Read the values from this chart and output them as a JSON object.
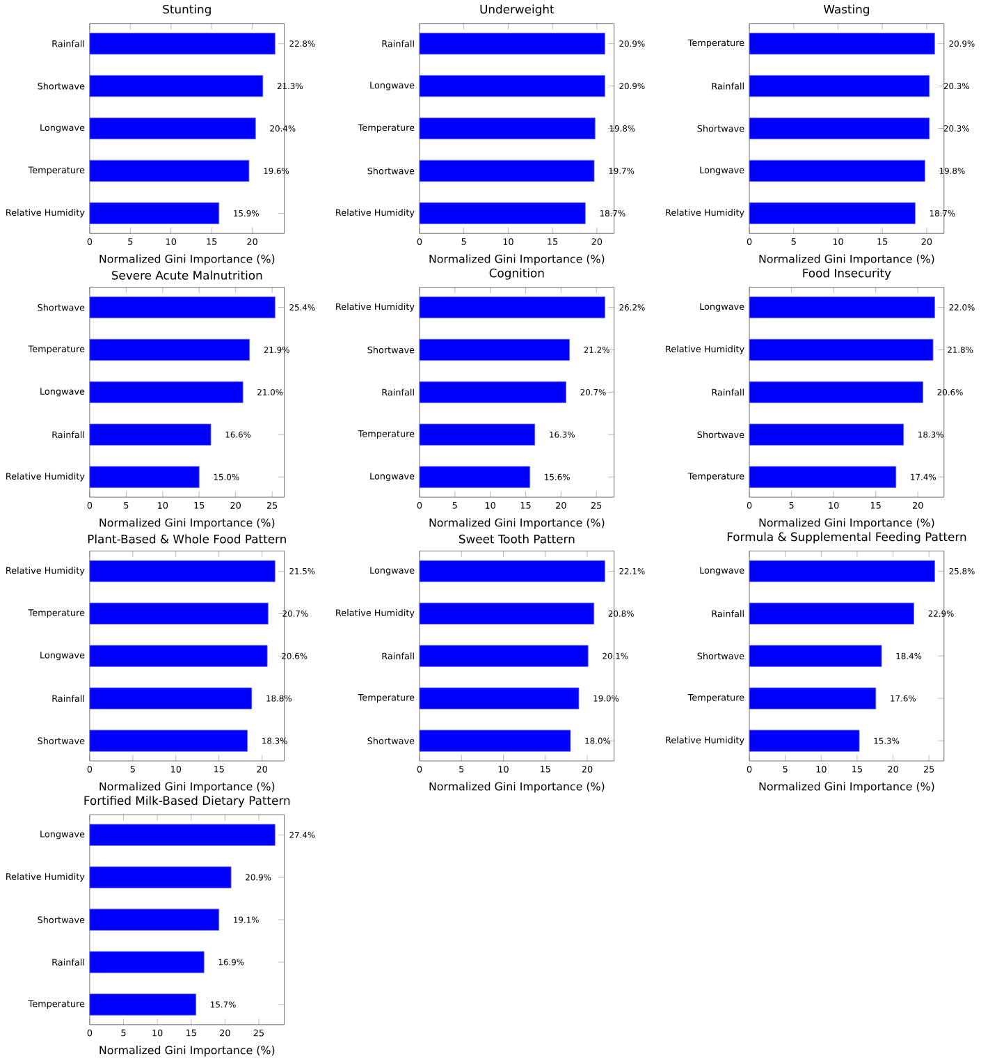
{
  "chart_data": [
    {
      "type": "bar",
      "orientation": "horizontal",
      "title": "Stunting",
      "xlabel": "Normalized Gini Importance (%)",
      "categories": [
        "Rainfall",
        "Shortwave",
        "Longwave",
        "Temperature",
        "Relative Humidity"
      ],
      "values": [
        22.8,
        21.3,
        20.4,
        19.6,
        15.9
      ],
      "value_labels": [
        "22.8%",
        "21.3%",
        "20.4%",
        "19.6%",
        "15.9%"
      ],
      "color": "#0000ff",
      "xlim": [
        0,
        23.94
      ],
      "xticks": [
        0,
        5,
        10,
        15,
        20
      ]
    },
    {
      "type": "bar",
      "orientation": "horizontal",
      "title": "Underweight",
      "xlabel": "Normalized Gini Importance (%)",
      "categories": [
        "Rainfall",
        "Longwave",
        "Temperature",
        "Shortwave",
        "Relative Humidity"
      ],
      "values": [
        20.9,
        20.9,
        19.8,
        19.7,
        18.7
      ],
      "value_labels": [
        "20.9%",
        "20.9%",
        "19.8%",
        "19.7%",
        "18.7%"
      ],
      "color": "#0000ff",
      "xlim": [
        0,
        21.95
      ],
      "xticks": [
        0,
        5,
        10,
        15,
        20
      ]
    },
    {
      "type": "bar",
      "orientation": "horizontal",
      "title": "Wasting",
      "xlabel": "Normalized Gini Importance (%)",
      "categories": [
        "Temperature",
        "Rainfall",
        "Shortwave",
        "Longwave",
        "Relative Humidity"
      ],
      "values": [
        20.9,
        20.3,
        20.3,
        19.8,
        18.7
      ],
      "value_labels": [
        "20.9%",
        "20.3%",
        "20.3%",
        "19.8%",
        "18.7%"
      ],
      "color": "#0000ff",
      "xlim": [
        0,
        21.95
      ],
      "xticks": [
        0,
        5,
        10,
        15,
        20
      ]
    },
    {
      "type": "bar",
      "orientation": "horizontal",
      "title": "Severe Acute Malnutrition",
      "xlabel": "Normalized Gini Importance (%)",
      "categories": [
        "Shortwave",
        "Temperature",
        "Longwave",
        "Rainfall",
        "Relative Humidity"
      ],
      "values": [
        25.4,
        21.9,
        21.0,
        16.6,
        15.0
      ],
      "value_labels": [
        "25.4%",
        "21.9%",
        "21.0%",
        "16.6%",
        "15.0%"
      ],
      "color": "#0000ff",
      "xlim": [
        0,
        26.67
      ],
      "xticks": [
        0,
        5,
        10,
        15,
        20,
        25
      ]
    },
    {
      "type": "bar",
      "orientation": "horizontal",
      "title": "Cognition",
      "xlabel": "Normalized Gini Importance (%)",
      "categories": [
        "Relative Humidity",
        "Shortwave",
        "Rainfall",
        "Temperature",
        "Longwave"
      ],
      "values": [
        26.2,
        21.2,
        20.7,
        16.3,
        15.6
      ],
      "value_labels": [
        "26.2%",
        "21.2%",
        "20.7%",
        "16.3%",
        "15.6%"
      ],
      "color": "#0000ff",
      "xlim": [
        0,
        27.51
      ],
      "xticks": [
        0,
        5,
        10,
        15,
        20,
        25
      ]
    },
    {
      "type": "bar",
      "orientation": "horizontal",
      "title": "Food Insecurity",
      "xlabel": "Normalized Gini Importance (%)",
      "categories": [
        "Longwave",
        "Relative Humidity",
        "Rainfall",
        "Shortwave",
        "Temperature"
      ],
      "values": [
        22.0,
        21.8,
        20.6,
        18.3,
        17.4
      ],
      "value_labels": [
        "22.0%",
        "21.8%",
        "20.6%",
        "18.3%",
        "17.4%"
      ],
      "color": "#0000ff",
      "xlim": [
        0,
        23.1
      ],
      "xticks": [
        0,
        5,
        10,
        15,
        20
      ]
    },
    {
      "type": "bar",
      "orientation": "horizontal",
      "title": "Plant-Based & Whole Food Pattern",
      "xlabel": "Normalized Gini Importance (%)",
      "categories": [
        "Relative Humidity",
        "Temperature",
        "Longwave",
        "Rainfall",
        "Shortwave"
      ],
      "values": [
        21.5,
        20.7,
        20.6,
        18.8,
        18.3
      ],
      "value_labels": [
        "21.5%",
        "20.7%",
        "20.6%",
        "18.8%",
        "18.3%"
      ],
      "color": "#0000ff",
      "xlim": [
        0,
        22.58
      ],
      "xticks": [
        0,
        5,
        10,
        15,
        20
      ]
    },
    {
      "type": "bar",
      "orientation": "horizontal",
      "title": "Sweet Tooth Pattern",
      "xlabel": "Normalized Gini Importance (%)",
      "categories": [
        "Longwave",
        "Relative Humidity",
        "Rainfall",
        "Temperature",
        "Shortwave"
      ],
      "values": [
        22.1,
        20.8,
        20.1,
        19.0,
        18.0
      ],
      "value_labels": [
        "22.1%",
        "20.8%",
        "20.1%",
        "19.0%",
        "18.0%"
      ],
      "color": "#0000ff",
      "xlim": [
        0,
        23.21
      ],
      "xticks": [
        0,
        5,
        10,
        15,
        20
      ]
    },
    {
      "type": "bar",
      "orientation": "horizontal",
      "title": "Formula & Supplemental Feeding Pattern",
      "xlabel": "Normalized Gini Importance (%)",
      "categories": [
        "Longwave",
        "Rainfall",
        "Shortwave",
        "Temperature",
        "Relative Humidity"
      ],
      "values": [
        25.8,
        22.9,
        18.4,
        17.6,
        15.3
      ],
      "value_labels": [
        "25.8%",
        "22.9%",
        "18.4%",
        "17.6%",
        "15.3%"
      ],
      "color": "#0000ff",
      "xlim": [
        0,
        27.09
      ],
      "xticks": [
        0,
        5,
        10,
        15,
        20,
        25
      ]
    },
    {
      "type": "bar",
      "orientation": "horizontal",
      "title": "Fortified Milk-Based Dietary Pattern",
      "xlabel": "Normalized Gini Importance (%)",
      "categories": [
        "Longwave",
        "Relative Humidity",
        "Shortwave",
        "Rainfall",
        "Temperature"
      ],
      "values": [
        27.4,
        20.9,
        19.1,
        16.9,
        15.7
      ],
      "value_labels": [
        "27.4%",
        "20.9%",
        "19.1%",
        "16.9%",
        "15.7%"
      ],
      "color": "#0000ff",
      "xlim": [
        0,
        28.77
      ],
      "xticks": [
        0,
        5,
        10,
        15,
        20,
        25
      ]
    }
  ]
}
